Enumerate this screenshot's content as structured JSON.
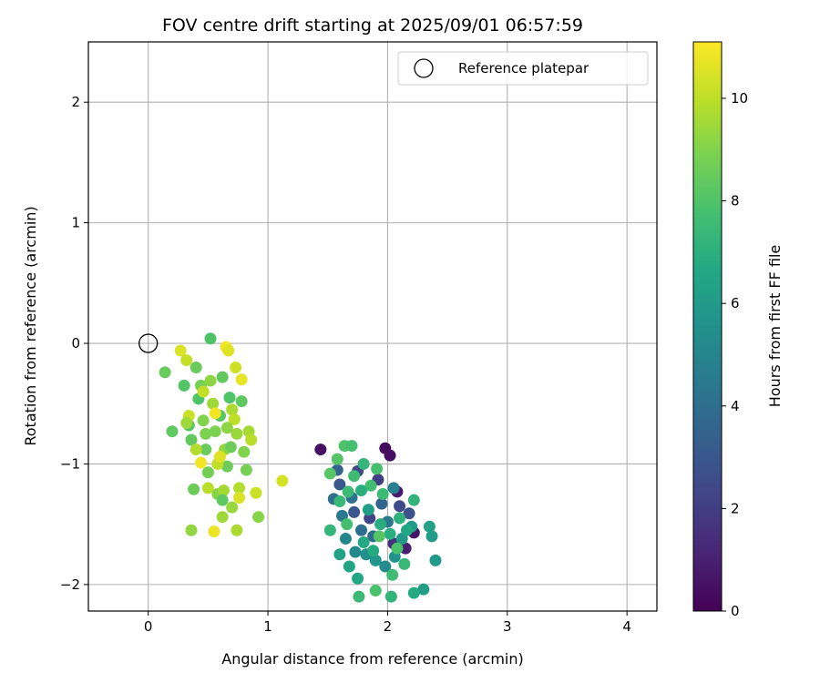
{
  "chart_data": {
    "type": "scatter",
    "title": "FOV centre drift starting at 2025/09/01 06:57:59",
    "xlabel": "Angular distance from reference (arcmin)",
    "ylabel": "Rotation from reference (arcmin)",
    "xlim": [
      -0.5,
      4.25
    ],
    "ylim": [
      -2.22,
      2.5
    ],
    "xticks": [
      0,
      1,
      2,
      3,
      4
    ],
    "yticks": [
      -2,
      -1,
      0,
      1,
      2
    ],
    "xtick_labels": [
      "0",
      "1",
      "2",
      "3",
      "4"
    ],
    "ytick_labels": [
      "−2",
      "−1",
      "0",
      "1",
      "2"
    ],
    "grid": true,
    "legend": {
      "position": "top-right",
      "entries": [
        "Reference platepar"
      ]
    },
    "reference_point": {
      "x": 0,
      "y": 0,
      "label": "Reference platepar",
      "marker": "open-circle"
    },
    "colorbar": {
      "label": "Hours from first FF file",
      "colormap": "viridis",
      "range": [
        0,
        11.1
      ],
      "ticks": [
        0,
        2,
        4,
        6,
        8,
        10
      ],
      "tick_labels": [
        "0",
        "2",
        "4",
        "6",
        "8",
        "10"
      ]
    },
    "series": [
      {
        "points": [
          [
            1.44,
            -0.88,
            0.5
          ],
          [
            1.98,
            -0.87,
            0.3
          ],
          [
            2.02,
            -0.93,
            0.4
          ],
          [
            2.08,
            -1.23,
            0.8
          ],
          [
            2.22,
            -1.57,
            0.6
          ],
          [
            2.15,
            -1.7,
            1.0
          ],
          [
            2.05,
            -1.66,
            1.5
          ],
          [
            1.92,
            -1.13,
            2.0
          ],
          [
            1.75,
            -1.06,
            2.5
          ],
          [
            1.6,
            -1.17,
            3.0
          ],
          [
            1.58,
            -1.05,
            3.5
          ],
          [
            1.72,
            -1.4,
            3.0
          ],
          [
            1.85,
            -1.45,
            2.2
          ],
          [
            2.1,
            -1.35,
            2.5
          ],
          [
            2.18,
            -1.41,
            2.8
          ],
          [
            1.55,
            -1.29,
            4.0
          ],
          [
            1.62,
            -1.43,
            4.5
          ],
          [
            1.7,
            -1.28,
            4.2
          ],
          [
            1.78,
            -1.55,
            4.0
          ],
          [
            1.88,
            -1.6,
            3.8
          ],
          [
            1.95,
            -1.33,
            3.6
          ],
          [
            2.0,
            -1.48,
            4.4
          ],
          [
            2.05,
            -1.2,
            4.8
          ],
          [
            1.65,
            -1.62,
            5.0
          ],
          [
            1.73,
            -1.73,
            5.2
          ],
          [
            1.82,
            -1.75,
            5.5
          ],
          [
            1.9,
            -1.8,
            5.8
          ],
          [
            1.98,
            -1.85,
            5.3
          ],
          [
            2.06,
            -1.77,
            5.6
          ],
          [
            2.12,
            -1.62,
            5.9
          ],
          [
            2.2,
            -1.52,
            6.0
          ],
          [
            2.3,
            -2.04,
            6.2
          ],
          [
            2.35,
            -1.52,
            6.3
          ],
          [
            2.37,
            -1.6,
            6.1
          ],
          [
            1.6,
            -1.75,
            6.4
          ],
          [
            1.68,
            -1.85,
            6.5
          ],
          [
            1.75,
            -1.95,
            6.6
          ],
          [
            1.8,
            -1.65,
            6.7
          ],
          [
            1.88,
            -1.72,
            6.8
          ],
          [
            1.94,
            -1.5,
            6.9
          ],
          [
            2.02,
            -1.58,
            7.0
          ],
          [
            2.1,
            -1.45,
            7.1
          ],
          [
            2.16,
            -1.55,
            6.6
          ],
          [
            2.22,
            -1.3,
            7.2
          ],
          [
            1.52,
            -1.55,
            7.3
          ],
          [
            1.6,
            -1.31,
            7.4
          ],
          [
            1.67,
            -1.23,
            7.5
          ],
          [
            1.72,
            -1.1,
            7.6
          ],
          [
            1.8,
            -1.0,
            7.3
          ],
          [
            1.86,
            -1.18,
            7.7
          ],
          [
            1.91,
            -1.04,
            7.8
          ],
          [
            1.96,
            -1.25,
            7.5
          ],
          [
            2.04,
            -1.92,
            7.6
          ],
          [
            2.08,
            -1.7,
            7.9
          ],
          [
            2.14,
            -1.83,
            7.4
          ],
          [
            1.64,
            -0.85,
            8.0
          ],
          [
            1.7,
            -0.85,
            7.8
          ],
          [
            1.58,
            -0.96,
            8.1
          ],
          [
            1.52,
            -1.08,
            8.2
          ],
          [
            1.76,
            -2.1,
            7.5
          ],
          [
            2.03,
            -2.1,
            7.2
          ],
          [
            2.22,
            -2.07,
            6.8
          ],
          [
            1.9,
            -2.05,
            7.9
          ],
          [
            2.4,
            -1.8,
            6.0
          ],
          [
            1.84,
            -1.38,
            6.2
          ],
          [
            1.78,
            -1.22,
            7.0
          ],
          [
            1.66,
            -1.5,
            7.8
          ],
          [
            1.93,
            -1.6,
            8.1
          ],
          [
            0.52,
            0.04,
            8.0
          ],
          [
            0.14,
            -0.24,
            8.5
          ],
          [
            0.2,
            -0.73,
            8.3
          ],
          [
            0.3,
            -0.35,
            8.1
          ],
          [
            0.34,
            -0.68,
            8.2
          ],
          [
            0.36,
            -0.8,
            8.4
          ],
          [
            0.38,
            -1.21,
            8.6
          ],
          [
            0.42,
            -0.46,
            8.0
          ],
          [
            0.44,
            -0.35,
            8.8
          ],
          [
            0.46,
            -0.64,
            9.0
          ],
          [
            0.48,
            -0.88,
            8.5
          ],
          [
            0.5,
            -1.07,
            8.7
          ],
          [
            0.52,
            -0.31,
            9.2
          ],
          [
            0.54,
            -0.5,
            9.5
          ],
          [
            0.56,
            -0.73,
            8.9
          ],
          [
            0.58,
            -1.25,
            9.1
          ],
          [
            0.6,
            -0.6,
            8.2
          ],
          [
            0.62,
            -0.28,
            8.4
          ],
          [
            0.64,
            -0.88,
            9.3
          ],
          [
            0.66,
            -1.02,
            8.6
          ],
          [
            0.68,
            -0.45,
            8.0
          ],
          [
            0.7,
            -0.55,
            9.7
          ],
          [
            0.72,
            -0.63,
            10.0
          ],
          [
            0.74,
            -0.75,
            9.4
          ],
          [
            0.76,
            -1.2,
            9.8
          ],
          [
            0.78,
            -0.48,
            8.3
          ],
          [
            0.8,
            -0.9,
            9.0
          ],
          [
            0.82,
            -1.05,
            8.8
          ],
          [
            0.84,
            -0.73,
            9.6
          ],
          [
            0.86,
            -0.8,
            9.9
          ],
          [
            0.9,
            -1.24,
            10.2
          ],
          [
            0.92,
            -1.44,
            9.1
          ],
          [
            0.27,
            -0.06,
            10.5
          ],
          [
            0.32,
            -0.14,
            10.1
          ],
          [
            0.4,
            -0.2,
            8.5
          ],
          [
            0.36,
            -1.55,
            9.3
          ],
          [
            0.55,
            -1.56,
            10.8
          ],
          [
            0.62,
            -1.44,
            9.5
          ],
          [
            0.74,
            -1.55,
            9.7
          ],
          [
            0.65,
            -0.03,
            10.9
          ],
          [
            0.67,
            -0.06,
            10.6
          ],
          [
            0.73,
            -0.2,
            10.3
          ],
          [
            0.78,
            -0.3,
            10.7
          ],
          [
            1.12,
            -1.14,
            10.4
          ],
          [
            0.44,
            -0.99,
            10.9
          ],
          [
            0.5,
            -1.2,
            9.9
          ],
          [
            0.58,
            -1.0,
            10.0
          ],
          [
            0.63,
            -1.22,
            9.6
          ],
          [
            0.7,
            -1.36,
            9.4
          ],
          [
            0.76,
            -1.28,
            10.5
          ],
          [
            0.34,
            -0.6,
            10.2
          ],
          [
            0.4,
            -0.88,
            9.8
          ],
          [
            0.46,
            -0.4,
            10.1
          ],
          [
            0.56,
            -0.58,
            10.9
          ],
          [
            0.6,
            -0.94,
            10.6
          ],
          [
            0.66,
            -0.7,
            9.2
          ],
          [
            0.69,
            -0.86,
            8.6
          ],
          [
            0.48,
            -0.75,
            8.9
          ],
          [
            0.32,
            -0.66,
            9.5
          ],
          [
            0.62,
            -1.3,
            8.3
          ]
        ]
      }
    ]
  }
}
